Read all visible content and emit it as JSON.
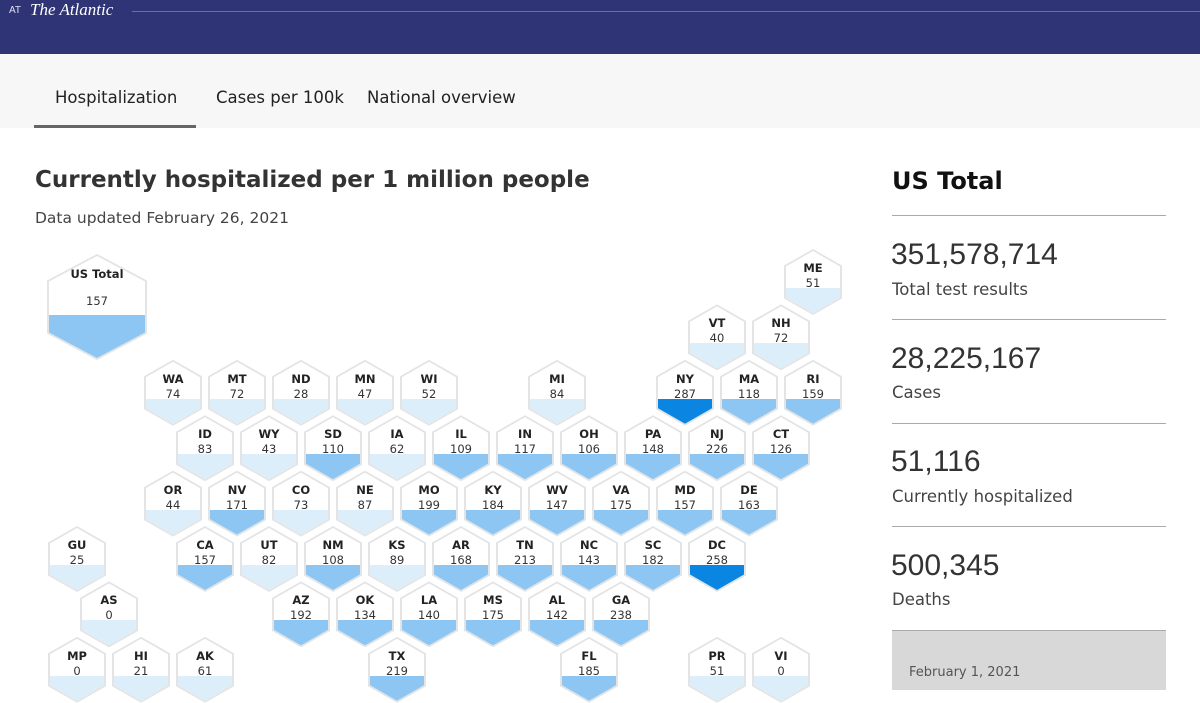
{
  "header": {
    "prefix": "AT",
    "brand": "The Atlantic"
  },
  "tabs": [
    {
      "label": "Hospitalization",
      "active": true
    },
    {
      "label": "Cases per 100k"
    },
    {
      "label": "National overview"
    }
  ],
  "main": {
    "title": "Currently hospitalized per 1 million people",
    "updated": "Data updated February 26, 2021"
  },
  "color_scale": {
    "low": "#ddeefb",
    "mid": "#8ec6f3",
    "high": "#0a86e2",
    "thresholds": [
      100,
      250
    ]
  },
  "us_total": {
    "label": "US Total",
    "value": 157
  },
  "states": [
    {
      "abbr": "ME",
      "value": 51
    },
    {
      "abbr": "VT",
      "value": 40
    },
    {
      "abbr": "NH",
      "value": 72
    },
    {
      "abbr": "WA",
      "value": 74
    },
    {
      "abbr": "MT",
      "value": 72
    },
    {
      "abbr": "ND",
      "value": 28
    },
    {
      "abbr": "MN",
      "value": 47
    },
    {
      "abbr": "WI",
      "value": 52
    },
    {
      "abbr": "MI",
      "value": 84
    },
    {
      "abbr": "NY",
      "value": 287
    },
    {
      "abbr": "MA",
      "value": 118
    },
    {
      "abbr": "RI",
      "value": 159
    },
    {
      "abbr": "ID",
      "value": 83
    },
    {
      "abbr": "WY",
      "value": 43
    },
    {
      "abbr": "SD",
      "value": 110
    },
    {
      "abbr": "IA",
      "value": 62
    },
    {
      "abbr": "IL",
      "value": 109
    },
    {
      "abbr": "IN",
      "value": 117
    },
    {
      "abbr": "OH",
      "value": 106
    },
    {
      "abbr": "PA",
      "value": 148
    },
    {
      "abbr": "NJ",
      "value": 226
    },
    {
      "abbr": "CT",
      "value": 126
    },
    {
      "abbr": "OR",
      "value": 44
    },
    {
      "abbr": "NV",
      "value": 171
    },
    {
      "abbr": "CO",
      "value": 73
    },
    {
      "abbr": "NE",
      "value": 87
    },
    {
      "abbr": "MO",
      "value": 199
    },
    {
      "abbr": "KY",
      "value": 184
    },
    {
      "abbr": "WV",
      "value": 147
    },
    {
      "abbr": "VA",
      "value": 175
    },
    {
      "abbr": "MD",
      "value": 157
    },
    {
      "abbr": "DE",
      "value": 163
    },
    {
      "abbr": "GU",
      "value": 25
    },
    {
      "abbr": "CA",
      "value": 157
    },
    {
      "abbr": "UT",
      "value": 82
    },
    {
      "abbr": "NM",
      "value": 108
    },
    {
      "abbr": "KS",
      "value": 89
    },
    {
      "abbr": "AR",
      "value": 168
    },
    {
      "abbr": "TN",
      "value": 213
    },
    {
      "abbr": "NC",
      "value": 143
    },
    {
      "abbr": "SC",
      "value": 182
    },
    {
      "abbr": "DC",
      "value": 258
    },
    {
      "abbr": "AS",
      "value": 0
    },
    {
      "abbr": "AZ",
      "value": 192
    },
    {
      "abbr": "OK",
      "value": 134
    },
    {
      "abbr": "LA",
      "value": 140
    },
    {
      "abbr": "MS",
      "value": 175
    },
    {
      "abbr": "AL",
      "value": 142
    },
    {
      "abbr": "GA",
      "value": 238
    },
    {
      "abbr": "MP",
      "value": 0
    },
    {
      "abbr": "HI",
      "value": 21
    },
    {
      "abbr": "AK",
      "value": 61
    },
    {
      "abbr": "TX",
      "value": 219
    },
    {
      "abbr": "FL",
      "value": 185
    },
    {
      "abbr": "PR",
      "value": 51
    },
    {
      "abbr": "VI",
      "value": 0
    }
  ],
  "sidebar": {
    "title": "US Total",
    "stats": [
      {
        "value": "351,578,714",
        "label": "Total test results"
      },
      {
        "value": "28,225,167",
        "label": "Cases"
      },
      {
        "value": "51,116",
        "label": "Currently hospitalized"
      },
      {
        "value": "500,345",
        "label": "Deaths"
      }
    ],
    "chart_date": "February 1, 2021"
  }
}
